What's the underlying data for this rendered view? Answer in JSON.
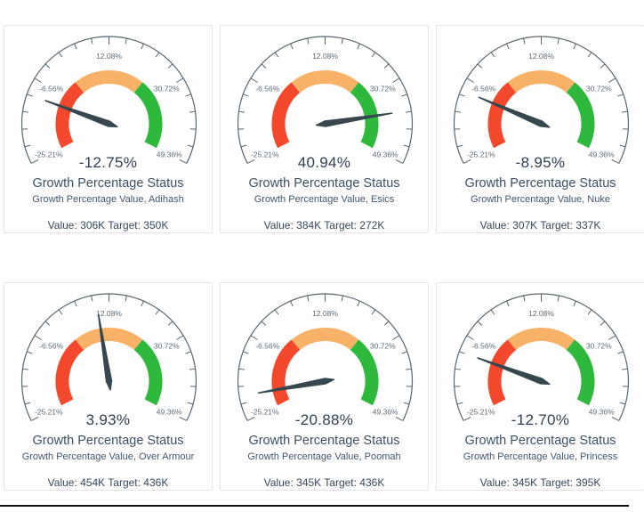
{
  "page": {
    "background_color": "#ffffff",
    "divider_color": "#121212"
  },
  "gauge_style": {
    "start_angle": 207,
    "end_angle": -27,
    "axis_color": "#57666f",
    "tick_label_color": "#5b6b78",
    "red": "#f4482c",
    "orange": "#f7b267",
    "green": "#2eb93c",
    "needle_color": "#37474f"
  },
  "chart_data": [
    {
      "type": "gauge",
      "title": "Growth Percentage Status",
      "subtitle": "Growth Percentage Value, Adihash",
      "value_percent": -12.75,
      "value_label": "-12.75%",
      "value": "306K",
      "target": "350K",
      "footer": "Value: 306K Target: 350K",
      "tick_labels": [
        "-25.21%",
        "-6.56%",
        "12.08%",
        "30.72%",
        "49.36%"
      ],
      "axis_min_label": "-25.21%",
      "axis_max_label": "49.36%",
      "needle_angle_deg": 160
    },
    {
      "type": "gauge",
      "title": "Growth Percentage Status",
      "subtitle": "Growth Percentage Value, Esics",
      "value_percent": 40.94,
      "value_label": "40.94%",
      "value": "384K",
      "target": "272K",
      "footer": "Value: 384K Target: 272K",
      "tick_labels": [
        "-25.21%",
        "-6.56%",
        "12.08%",
        "30.72%",
        "49.36%"
      ],
      "axis_min_label": "-25.21%",
      "axis_max_label": "49.36%",
      "needle_angle_deg": 9
    },
    {
      "type": "gauge",
      "title": "Growth Percentage Status",
      "subtitle": "Growth Percentage Value, Nuke",
      "value_percent": -8.95,
      "value_label": "-8.95%",
      "value": "307K",
      "target": "337K",
      "footer": "Value: 307K Target: 337K",
      "tick_labels": [
        "-25.21%",
        "-6.56%",
        "12.08%",
        "30.72%",
        "49.36%"
      ],
      "axis_min_label": "-25.21%",
      "axis_max_label": "49.36%",
      "needle_angle_deg": 157
    },
    {
      "type": "gauge",
      "title": "Growth Percentage Status",
      "subtitle": "Growth Percentage Value, Over Armour",
      "value_percent": 3.93,
      "value_label": "3.93%",
      "value": "454K",
      "target": "436K",
      "footer": "Value: 454K Target: 436K",
      "tick_labels": [
        "-25.21%",
        "-6.56%",
        "12.08%",
        "30.72%",
        "49.36%"
      ],
      "axis_min_label": "-25.21%",
      "axis_max_label": "49.36%",
      "needle_angle_deg": 99
    },
    {
      "type": "gauge",
      "title": "Growth Percentage Status",
      "subtitle": "Growth Percentage Value, Poomah",
      "value_percent": -20.88,
      "value_label": "-20.88%",
      "value": "345K",
      "target": "436K",
      "footer": "Value: 345K Target: 436K",
      "tick_labels": [
        "-25.21%",
        "-6.56%",
        "12.08%",
        "30.72%",
        "49.36%"
      ],
      "axis_min_label": "-25.21%",
      "axis_max_label": "49.36%",
      "needle_angle_deg": 190
    },
    {
      "type": "gauge",
      "title": "Growth Percentage Status",
      "subtitle": "Growth Percentage Value, Princess",
      "value_percent": -12.7,
      "value_label": "-12.70%",
      "value": "345K",
      "target": "395K",
      "footer": "Value: 345K Target: 395K",
      "tick_labels": [
        "-25.21%",
        "-6.56%",
        "12.08%",
        "30.72%",
        "49.36%"
      ],
      "axis_min_label": "-25.21%",
      "axis_max_label": "49.36%",
      "needle_angle_deg": 160
    }
  ]
}
